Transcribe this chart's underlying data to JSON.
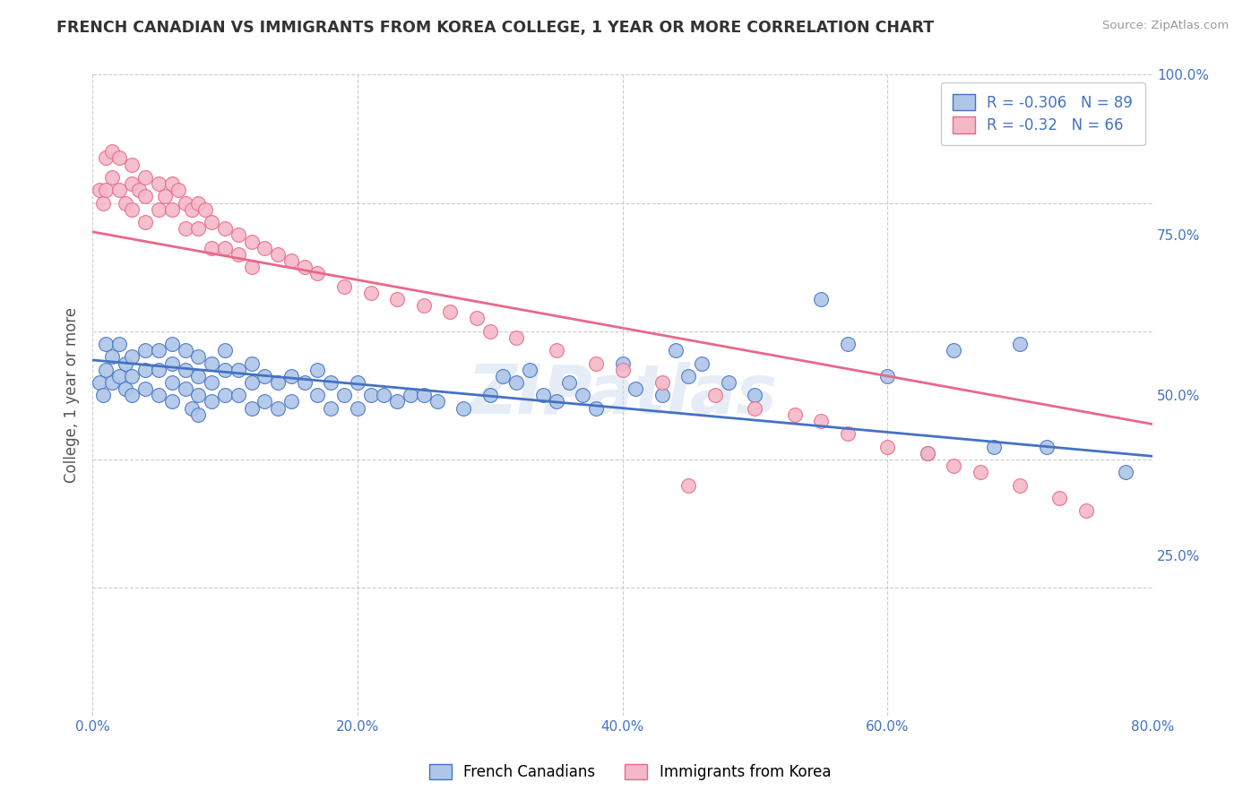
{
  "title": "FRENCH CANADIAN VS IMMIGRANTS FROM KOREA COLLEGE, 1 YEAR OR MORE CORRELATION CHART",
  "source_text": "Source: ZipAtlas.com",
  "ylabel": "College, 1 year or more",
  "x_min": 0.0,
  "x_max": 0.8,
  "y_min": 0.0,
  "y_max": 1.0,
  "x_tick_labels": [
    "0.0%",
    "20.0%",
    "40.0%",
    "60.0%",
    "80.0%"
  ],
  "x_tick_vals": [
    0.0,
    0.2,
    0.4,
    0.6,
    0.8
  ],
  "y_tick_labels": [
    "25.0%",
    "50.0%",
    "75.0%",
    "100.0%"
  ],
  "y_tick_vals": [
    0.25,
    0.5,
    0.75,
    1.0
  ],
  "blue_R": -0.306,
  "blue_N": 89,
  "pink_R": -0.32,
  "pink_N": 66,
  "legend_labels": [
    "French Canadians",
    "Immigrants from Korea"
  ],
  "blue_color": "#aec6e8",
  "pink_color": "#f4b8c8",
  "blue_line_color": "#4472c4",
  "pink_line_color": "#e8688a",
  "watermark": "ZIPatlas",
  "blue_line_x0": 0.0,
  "blue_line_y0": 0.555,
  "blue_line_x1": 0.8,
  "blue_line_y1": 0.405,
  "pink_line_x0": 0.0,
  "pink_line_y0": 0.755,
  "pink_line_x1": 0.8,
  "pink_line_y1": 0.455,
  "blue_scatter_x": [
    0.005,
    0.008,
    0.01,
    0.01,
    0.015,
    0.015,
    0.02,
    0.02,
    0.025,
    0.025,
    0.03,
    0.03,
    0.03,
    0.04,
    0.04,
    0.04,
    0.05,
    0.05,
    0.05,
    0.06,
    0.06,
    0.06,
    0.06,
    0.07,
    0.07,
    0.07,
    0.075,
    0.08,
    0.08,
    0.08,
    0.08,
    0.09,
    0.09,
    0.09,
    0.1,
    0.1,
    0.1,
    0.11,
    0.11,
    0.12,
    0.12,
    0.12,
    0.13,
    0.13,
    0.14,
    0.14,
    0.15,
    0.15,
    0.16,
    0.17,
    0.17,
    0.18,
    0.18,
    0.19,
    0.2,
    0.2,
    0.21,
    0.22,
    0.23,
    0.24,
    0.25,
    0.26,
    0.28,
    0.3,
    0.31,
    0.32,
    0.33,
    0.34,
    0.35,
    0.36,
    0.37,
    0.38,
    0.4,
    0.41,
    0.43,
    0.44,
    0.45,
    0.46,
    0.48,
    0.5,
    0.55,
    0.57,
    0.6,
    0.63,
    0.65,
    0.68,
    0.7,
    0.72,
    0.78
  ],
  "blue_scatter_y": [
    0.52,
    0.5,
    0.58,
    0.54,
    0.56,
    0.52,
    0.58,
    0.53,
    0.55,
    0.51,
    0.56,
    0.53,
    0.5,
    0.57,
    0.54,
    0.51,
    0.57,
    0.54,
    0.5,
    0.58,
    0.55,
    0.52,
    0.49,
    0.57,
    0.54,
    0.51,
    0.48,
    0.56,
    0.53,
    0.5,
    0.47,
    0.55,
    0.52,
    0.49,
    0.57,
    0.54,
    0.5,
    0.54,
    0.5,
    0.55,
    0.52,
    0.48,
    0.53,
    0.49,
    0.52,
    0.48,
    0.53,
    0.49,
    0.52,
    0.54,
    0.5,
    0.52,
    0.48,
    0.5,
    0.52,
    0.48,
    0.5,
    0.5,
    0.49,
    0.5,
    0.5,
    0.49,
    0.48,
    0.5,
    0.53,
    0.52,
    0.54,
    0.5,
    0.49,
    0.52,
    0.5,
    0.48,
    0.55,
    0.51,
    0.5,
    0.57,
    0.53,
    0.55,
    0.52,
    0.5,
    0.65,
    0.58,
    0.53,
    0.41,
    0.57,
    0.42,
    0.58,
    0.42,
    0.38
  ],
  "pink_scatter_x": [
    0.005,
    0.008,
    0.01,
    0.01,
    0.015,
    0.015,
    0.02,
    0.02,
    0.025,
    0.03,
    0.03,
    0.03,
    0.035,
    0.04,
    0.04,
    0.04,
    0.05,
    0.05,
    0.055,
    0.06,
    0.06,
    0.065,
    0.07,
    0.07,
    0.075,
    0.08,
    0.08,
    0.085,
    0.09,
    0.09,
    0.1,
    0.1,
    0.11,
    0.11,
    0.12,
    0.12,
    0.13,
    0.14,
    0.15,
    0.16,
    0.17,
    0.19,
    0.21,
    0.23,
    0.25,
    0.27,
    0.29,
    0.3,
    0.32,
    0.35,
    0.38,
    0.4,
    0.43,
    0.45,
    0.47,
    0.5,
    0.53,
    0.55,
    0.57,
    0.6,
    0.63,
    0.65,
    0.67,
    0.7,
    0.73,
    0.75
  ],
  "pink_scatter_y": [
    0.82,
    0.8,
    0.87,
    0.82,
    0.88,
    0.84,
    0.87,
    0.82,
    0.8,
    0.86,
    0.83,
    0.79,
    0.82,
    0.84,
    0.81,
    0.77,
    0.83,
    0.79,
    0.81,
    0.83,
    0.79,
    0.82,
    0.8,
    0.76,
    0.79,
    0.8,
    0.76,
    0.79,
    0.77,
    0.73,
    0.76,
    0.73,
    0.75,
    0.72,
    0.74,
    0.7,
    0.73,
    0.72,
    0.71,
    0.7,
    0.69,
    0.67,
    0.66,
    0.65,
    0.64,
    0.63,
    0.62,
    0.6,
    0.59,
    0.57,
    0.55,
    0.54,
    0.52,
    0.36,
    0.5,
    0.48,
    0.47,
    0.46,
    0.44,
    0.42,
    0.41,
    0.39,
    0.38,
    0.36,
    0.34,
    0.32
  ]
}
